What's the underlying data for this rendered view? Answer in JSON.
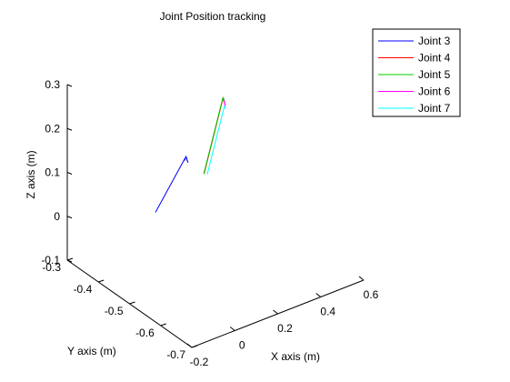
{
  "chart_data": {
    "type": "line",
    "title": "Joint Position tracking",
    "xlabel": "X axis (m)",
    "ylabel": "Y axis (m)",
    "zlabel": "Z axis (m)",
    "xlim": [
      -0.2,
      0.6
    ],
    "ylim": [
      -0.7,
      -0.3
    ],
    "zlim": [
      -0.1,
      0.3
    ],
    "x_ticks": [
      "-0.2",
      "0",
      "0.2",
      "0.4",
      "0.6"
    ],
    "y_ticks": [
      "-0.3",
      "-0.4",
      "-0.5",
      "-0.6",
      "-0.7"
    ],
    "z_ticks": [
      "-0.1",
      "0",
      "0.1",
      "0.2",
      "0.3"
    ],
    "grid": false,
    "legend_position": "top-right",
    "series": [
      {
        "name": "Joint 3",
        "color": "#0000ff",
        "points": [
          [
            0.08,
            -0.39,
            0.0
          ],
          [
            0.215,
            -0.39,
            0.095
          ],
          [
            0.22,
            -0.387,
            0.09
          ],
          [
            0.222,
            -0.39,
            0.1
          ],
          [
            0.225,
            -0.395,
            0.088
          ],
          [
            0.226,
            -0.39,
            0.092
          ],
          [
            0.224,
            -0.392,
            0.098
          ]
        ]
      },
      {
        "name": "Joint 4",
        "color": "#ff0000",
        "points": [
          [
            0.307,
            -0.39,
            0.045
          ],
          [
            0.395,
            -0.39,
            0.2
          ],
          [
            0.398,
            -0.392,
            0.19
          ],
          [
            0.4,
            -0.389,
            0.196
          ]
        ]
      },
      {
        "name": "Joint 5",
        "color": "#00cc00",
        "points": [
          [
            0.305,
            -0.39,
            0.044
          ],
          [
            0.394,
            -0.39,
            0.201
          ],
          [
            0.397,
            -0.391,
            0.193
          ],
          [
            0.4,
            -0.389,
            0.198
          ]
        ]
      },
      {
        "name": "Joint 6",
        "color": "#ff00ff",
        "points": [
          [
            0.398,
            -0.39,
            0.195
          ],
          [
            0.401,
            -0.393,
            0.185
          ],
          [
            0.403,
            -0.388,
            0.19
          ],
          [
            0.404,
            -0.391,
            0.18
          ]
        ]
      },
      {
        "name": "Joint 7",
        "color": "#00ffff",
        "points": [
          [
            0.321,
            -0.39,
            0.04
          ],
          [
            0.401,
            -0.39,
            0.18
          ],
          [
            0.404,
            -0.391,
            0.175
          ]
        ]
      }
    ]
  }
}
